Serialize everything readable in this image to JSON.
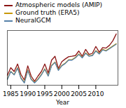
{
  "chart_data": {
    "type": "line",
    "title": "",
    "xlabel": "Year",
    "ylabel": "",
    "x": [
      1984,
      1985,
      1986,
      1987,
      1988,
      1989,
      1990,
      1991,
      1992,
      1993,
      1994,
      1995,
      1996,
      1997,
      1998,
      1999,
      2000,
      2001,
      2002,
      2003,
      2004,
      2005,
      2006,
      2007,
      2008,
      2009,
      2010,
      2011,
      2012,
      2013,
      2014,
      2015,
      2016
    ],
    "series": [
      {
        "name": "Atmospheric models (AMIP)",
        "color": "#8b1515",
        "values": [
          -0.12,
          0.22,
          0.05,
          0.38,
          -0.08,
          -0.32,
          0.3,
          -0.15,
          -0.38,
          -0.15,
          0.05,
          0.38,
          -0.02,
          0.55,
          0.72,
          0.18,
          0.48,
          0.6,
          0.7,
          0.72,
          0.75,
          0.95,
          0.72,
          1.02,
          0.8,
          0.85,
          1.15,
          0.9,
          1.1,
          1.08,
          1.2,
          1.4,
          1.7
        ]
      },
      {
        "name": "Ground truth (ERA5)",
        "color": "#c8980a",
        "values": [
          -0.28,
          0.06,
          -0.08,
          0.22,
          -0.22,
          -0.42,
          0.12,
          -0.28,
          -0.43,
          -0.28,
          -0.08,
          0.17,
          -0.13,
          0.32,
          0.47,
          0.12,
          0.32,
          0.42,
          0.57,
          0.57,
          0.67,
          0.82,
          0.67,
          0.87,
          0.74,
          0.77,
          0.97,
          0.84,
          1.02,
          0.97,
          1.07,
          1.17,
          1.27
        ]
      },
      {
        "name": "NeuralGCM",
        "color": "#5580a8",
        "values": [
          -0.3,
          0.05,
          -0.1,
          0.2,
          -0.25,
          -0.45,
          0.1,
          -0.3,
          -0.45,
          -0.3,
          -0.1,
          0.15,
          -0.15,
          0.3,
          0.45,
          0.1,
          0.3,
          0.4,
          0.55,
          0.55,
          0.65,
          0.8,
          0.65,
          0.85,
          0.72,
          0.75,
          0.95,
          0.82,
          1.0,
          0.95,
          1.05,
          1.15,
          1.25
        ]
      }
    ],
    "xlim": [
      1984,
      2016.5
    ],
    "xticks": [
      1985,
      1990,
      1995,
      2000,
      2005,
      2010
    ],
    "ylim": [
      -0.55,
      1.85
    ],
    "tick_labels": "x",
    "legend": "upper left"
  }
}
